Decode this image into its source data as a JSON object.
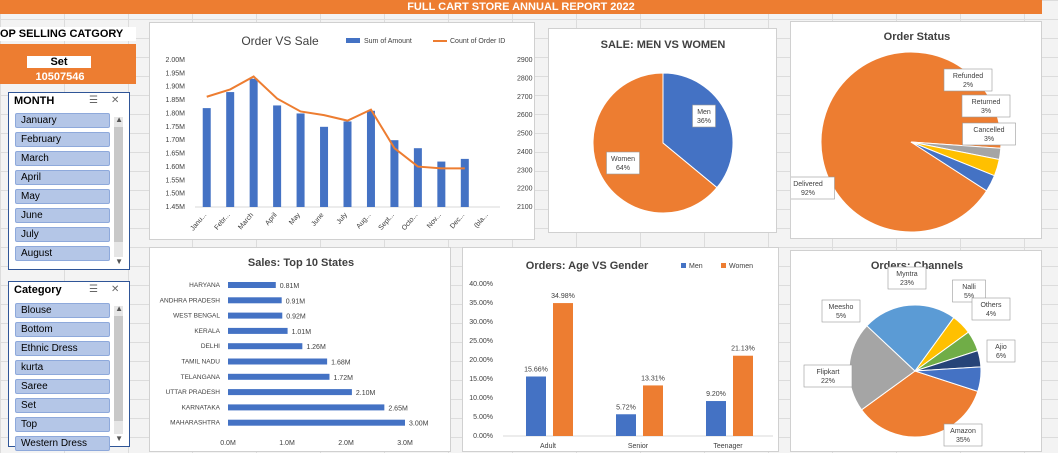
{
  "header": {
    "title": "FULL CART STORE ANNUAL REPORT 2022"
  },
  "top_selling": {
    "title": "OP SELLING CATGORY",
    "label": "Set",
    "value": "10507546"
  },
  "slicer_month": {
    "title": "MONTH",
    "items": [
      "January",
      "February",
      "March",
      "April",
      "May",
      "June",
      "July",
      "August"
    ],
    "icons": [
      "multi-select-icon",
      "clear-filter-icon"
    ]
  },
  "slicer_category": {
    "title": "Category",
    "items": [
      "Blouse",
      "Bottom",
      "Ethnic Dress",
      "kurta",
      "Saree",
      "Set",
      "Top",
      "Western Dress"
    ],
    "icons": [
      "multi-select-icon",
      "clear-filter-icon"
    ]
  },
  "colors": {
    "orange": "#ed7d31",
    "blue": "#4472c4",
    "gray": "#a5a5a5",
    "gold": "#ffc000",
    "lightblue": "#5b9bd5",
    "green": "#70ad47",
    "navy": "#264478"
  },
  "chart_data": [
    {
      "type": "bar",
      "title": "Order VS Sale",
      "categories": [
        "Janu...",
        "Febr...",
        "March",
        "April",
        "May",
        "June",
        "July",
        "Aug...",
        "Sept...",
        "Octo...",
        "Nov...",
        "Dec...",
        "(bla..."
      ],
      "series": [
        {
          "name": "Sum of Amount",
          "values": [
            1.82,
            1.88,
            1.93,
            1.83,
            1.8,
            1.75,
            1.77,
            1.81,
            1.7,
            1.67,
            1.62,
            1.63,
            null
          ]
        },
        {
          "name": "Count of Order ID",
          "values": [
            2700,
            2740,
            2810,
            2690,
            2620,
            2600,
            2570,
            2630,
            2420,
            2320,
            2310,
            2310,
            null
          ]
        }
      ],
      "ylim": [
        1.45,
        2.0
      ],
      "yticks": [
        "1.45M",
        "1.50M",
        "1.55M",
        "1.60M",
        "1.65M",
        "1.70M",
        "1.75M",
        "1.80M",
        "1.85M",
        "1.90M",
        "1.95M",
        "2.00M"
      ],
      "y2lim": [
        2100,
        2900
      ],
      "y2ticks": [
        "2100",
        "2200",
        "2300",
        "2400",
        "2500",
        "2600",
        "2700",
        "2800",
        "2900"
      ],
      "legend": "top-right"
    },
    {
      "type": "pie",
      "title": "SALE: MEN VS WOMEN",
      "labels": [
        "Men",
        "Women"
      ],
      "values": [
        36,
        64
      ],
      "data_labels": [
        "36%",
        "64%"
      ]
    },
    {
      "type": "pie",
      "title": "Order Status",
      "labels": [
        "Delivered",
        "Refunded",
        "Returned",
        "Cancelled"
      ],
      "values": [
        92,
        2,
        3,
        3
      ],
      "data_labels": [
        "92%",
        "2%",
        "3%",
        "3%"
      ]
    },
    {
      "type": "bar",
      "orientation": "horizontal",
      "title": "Sales: Top 10 States",
      "categories": [
        "HARYANA",
        "ANDHRA PRADESH",
        "WEST BENGAL",
        "KERALA",
        "DELHI",
        "TAMIL NADU",
        "TELANGANA",
        "UTTAR PRADESH",
        "KARNATAKA",
        "MAHARASHTRA"
      ],
      "values": [
        0.81,
        0.91,
        0.92,
        1.01,
        1.26,
        1.68,
        1.72,
        2.1,
        2.65,
        3.0
      ],
      "data_labels": [
        "0.81M",
        "0.91M",
        "0.92M",
        "1.01M",
        "1.26M",
        "1.68M",
        "1.72M",
        "2.10M",
        "2.65M",
        "3.00M"
      ],
      "xlim": [
        0,
        3.0
      ],
      "xticks": [
        "0.0M",
        "1.0M",
        "2.0M",
        "3.0M"
      ]
    },
    {
      "type": "bar",
      "title": "Orders: Age VS Gender",
      "categories": [
        "Adult",
        "Senior",
        "Teenager"
      ],
      "series": [
        {
          "name": "Men",
          "values": [
            15.66,
            5.72,
            9.2
          ],
          "data_labels": [
            "15.66%",
            "5.72%",
            "9.20%"
          ]
        },
        {
          "name": "Women",
          "values": [
            34.98,
            13.31,
            21.13
          ],
          "data_labels": [
            "34.98%",
            "13.31%",
            "21.13%"
          ]
        }
      ],
      "ylim": [
        0,
        40
      ],
      "yticks": [
        "0.00%",
        "5.00%",
        "10.00%",
        "15.00%",
        "20.00%",
        "25.00%",
        "30.00%",
        "35.00%",
        "40.00%"
      ],
      "legend": "top-right"
    },
    {
      "type": "pie",
      "title": "Orders: Channels",
      "labels": [
        "Amazon",
        "Flipkart",
        "Myntra",
        "Meesho",
        "Nalli",
        "Others",
        "Ajio"
      ],
      "values": [
        35,
        22,
        23,
        5,
        5,
        4,
        6
      ],
      "data_labels": [
        "35%",
        "22%",
        "23%",
        "5%",
        "5%",
        "4%",
        "6%"
      ]
    }
  ]
}
